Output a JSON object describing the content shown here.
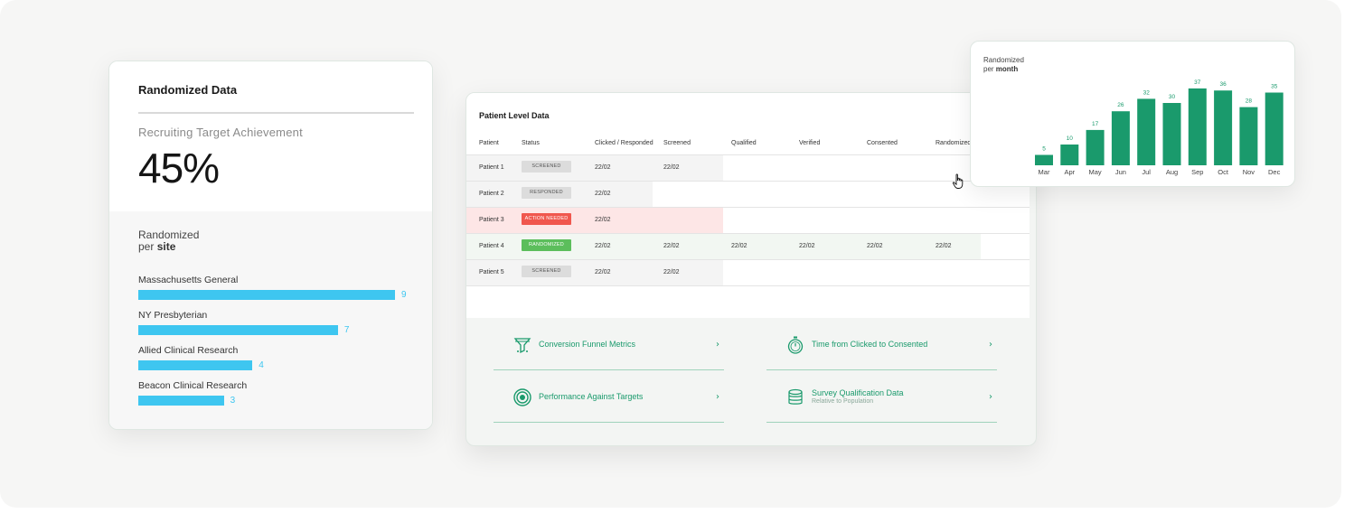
{
  "randomized_card": {
    "title": "Randomized Data",
    "subtitle": "Recruiting Target Achievement",
    "achievement": "45%",
    "per_label": "Randomized",
    "per_word": "per",
    "per_bold": "site",
    "sites": [
      {
        "name": "Massachusetts General",
        "value": 9
      },
      {
        "name": "NY Presbyterian",
        "value": 7
      },
      {
        "name": "Allied Clinical Research",
        "value": 4
      },
      {
        "name": "Beacon Clinical Research",
        "value": 3
      }
    ],
    "bar_color": "#3ec6f0"
  },
  "patient_table": {
    "title": "Patient Level Data",
    "columns": [
      "Patient",
      "Status",
      "Clicked / Responded",
      "Screened",
      "Qualified",
      "Verified",
      "Consented",
      "Randomized"
    ],
    "rows": [
      {
        "patient": "Patient 1",
        "status": "SCREENED",
        "clicked": "22/02",
        "screened": "22/02",
        "qualified": "",
        "verified": "",
        "consented": "",
        "randomized": ""
      },
      {
        "patient": "Patient 2",
        "status": "RESPONDED",
        "clicked": "22/02",
        "screened": "",
        "qualified": "",
        "verified": "",
        "consented": "",
        "randomized": ""
      },
      {
        "patient": "Patient 3",
        "status": "ACTION NEEDED",
        "clicked": "22/02",
        "screened": "",
        "qualified": "",
        "verified": "",
        "consented": "",
        "randomized": ""
      },
      {
        "patient": "Patient 4",
        "status": "RANDOMIZED",
        "clicked": "22/02",
        "screened": "22/02",
        "qualified": "22/02",
        "verified": "22/02",
        "consented": "22/02",
        "randomized": "22/02"
      },
      {
        "patient": "Patient 5",
        "status": "SCREENED",
        "clicked": "22/02",
        "screened": "22/02",
        "qualified": "",
        "verified": "",
        "consented": "",
        "randomized": ""
      }
    ],
    "status_colors": {
      "action_needed": "#f0574e",
      "randomized": "#5cbe5c",
      "default": "#dcdcdc"
    },
    "row_icons": [
      "info-icon",
      "chat-icon"
    ]
  },
  "links": [
    {
      "icon": "funnel-icon",
      "label": "Conversion Funnel Metrics",
      "sub": ""
    },
    {
      "icon": "stopwatch-icon",
      "label": "Time from Clicked to Consented",
      "sub": ""
    },
    {
      "icon": "target-icon",
      "label": "Performance Against Targets",
      "sub": ""
    },
    {
      "icon": "database-icon",
      "label": "Survey Qualification Data",
      "sub": "Relative to Population"
    }
  ],
  "month_card": {
    "per_label": "Randomized",
    "per_word": "per",
    "per_bold": "month"
  },
  "chart_data": {
    "type": "bar",
    "categories": [
      "Mar",
      "Apr",
      "May",
      "Jun",
      "Jul",
      "Aug",
      "Sep",
      "Oct",
      "Nov",
      "Dec"
    ],
    "values": [
      5,
      10,
      17,
      26,
      32,
      30,
      37,
      36,
      28,
      35
    ],
    "color": "#1a9a6c",
    "ylim": [
      0,
      40
    ],
    "grid": false,
    "legend": "none"
  }
}
